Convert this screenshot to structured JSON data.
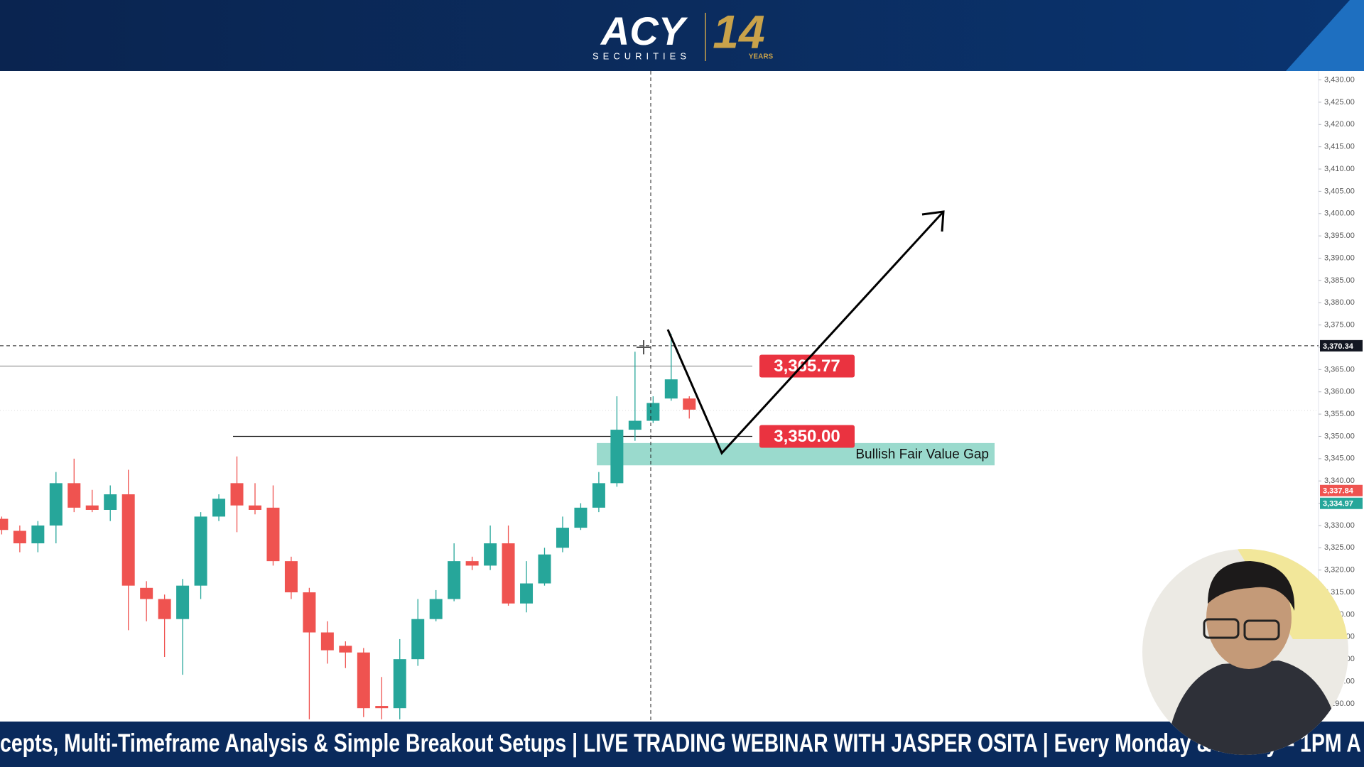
{
  "header": {
    "logo": "ACY",
    "logo_sub": "SECURITIES",
    "anniversary": "14",
    "anniversary_sub": "YEARS"
  },
  "ticker": "cepts, Multi-Timeframe Analysis & Simple Breakout Setups | LIVE TRADING WEBINAR WITH JASPER OSITA | Every Monday & Friday – 1PM A",
  "chart_data": {
    "type": "candlestick",
    "up_color": "#26a69a",
    "down_color": "#ef5350",
    "open": [
      3331.5,
      3328.8,
      3326,
      3330,
      3339.5,
      3334.5,
      3333.5,
      3337,
      3316,
      3313.5,
      3309,
      3316.5,
      3332,
      3339.5,
      3334.5,
      3334,
      3322,
      3315,
      3306,
      3303,
      3301.5,
      3289.5,
      3289,
      3300,
      3309,
      3313.5,
      3322,
      3321,
      3326,
      3312.5,
      3317,
      3325,
      3329.5,
      3334,
      3339.5,
      3351.5,
      3353.5,
      3358.5,
      3358.5
    ],
    "high": [
      3332,
      3330,
      3331,
      3342,
      3345,
      3338,
      3339,
      3342.5,
      3317.5,
      3314.5,
      3318,
      3333,
      3337,
      3345.5,
      3339.5,
      3339,
      3323,
      3316,
      3308.5,
      3304,
      3302.5,
      3296,
      3304.5,
      3313.5,
      3315.5,
      3326,
      3323,
      3330,
      3330,
      3322,
      3325,
      3332,
      3335,
      3342,
      3359,
      3369,
      3359,
      3373,
      3359
    ],
    "low": [
      3328,
      3324,
      3324,
      3326,
      3333,
      3333,
      3331,
      3306.5,
      3308.5,
      3300.5,
      3296.5,
      3313.5,
      3331,
      3328.5,
      3332.5,
      3321,
      3313.5,
      3286.5,
      3299,
      3298,
      3287,
      3286.5,
      3286.5,
      3298.5,
      3308.5,
      3313,
      3320,
      3320,
      3312,
      3310.5,
      3316.5,
      3324,
      3329,
      3333,
      3338.7,
      3349,
      3353,
      3358,
      3354
    ],
    "close": [
      3329,
      3326,
      3330,
      3339.5,
      3334,
      3333.5,
      3337,
      3316.5,
      3313.5,
      3309,
      3316.5,
      3332,
      3336,
      3334.5,
      3333.5,
      3322,
      3315,
      3306,
      3302,
      3301.5,
      3289,
      3289,
      3300,
      3309,
      3313.5,
      3322,
      3321,
      3326,
      3312.5,
      3317,
      3323.5,
      3329.5,
      3334,
      3339.5,
      3351.5,
      3353.5,
      3357.5,
      3362.8,
      3356
    ],
    "ylim": [
      3286,
      3432
    ],
    "yticks": [
      {
        "value": 3290,
        "label": "3,290.00"
      },
      {
        "value": 3295,
        "label": "3,295.00"
      },
      {
        "value": 3300,
        "label": "3,300.00"
      },
      {
        "value": 3305,
        "label": "3,305.00"
      },
      {
        "value": 3310,
        "label": "3,310.00"
      },
      {
        "value": 3315,
        "label": "3,315.00"
      },
      {
        "value": 3320,
        "label": "3,320.00"
      },
      {
        "value": 3325,
        "label": "3,325.00"
      },
      {
        "value": 3330,
        "label": "3,330.00"
      },
      {
        "value": 3335,
        "label": "3,335.00"
      },
      {
        "value": 3340,
        "label": "3,340.00"
      },
      {
        "value": 3345,
        "label": "3,345.00"
      },
      {
        "value": 3350,
        "label": "3,350.00"
      },
      {
        "value": 3355,
        "label": "3,355.00"
      },
      {
        "value": 3360,
        "label": "3,360.00"
      },
      {
        "value": 3365,
        "label": "3,365.00"
      },
      {
        "value": 3370,
        "label": "3,370.00"
      },
      {
        "value": 3375,
        "label": "3,375.00"
      },
      {
        "value": 3380,
        "label": "3,380.00"
      },
      {
        "value": 3385,
        "label": "3,385.00"
      },
      {
        "value": 3390,
        "label": "3,390.00"
      },
      {
        "value": 3395,
        "label": "3,395.00"
      },
      {
        "value": 3400,
        "label": "3,400.00"
      },
      {
        "value": 3405,
        "label": "3,405.00"
      },
      {
        "value": 3410,
        "label": "3,410.00"
      },
      {
        "value": 3415,
        "label": "3,415.00"
      },
      {
        "value": 3420,
        "label": "3,420.00"
      },
      {
        "value": 3425,
        "label": "3,425.00"
      },
      {
        "value": 3430,
        "label": "3,430.00"
      }
    ],
    "price_labels": [
      {
        "value": 3370.34,
        "label": "3,370.34",
        "color": "#131722"
      },
      {
        "value": 3337.84,
        "label": "3,337.84",
        "color": "#ef5350"
      },
      {
        "value": 3334.97,
        "label": "3,334.97",
        "color": "#26a69a"
      }
    ],
    "levels": [
      {
        "value": 3365.77,
        "label": "3,365.77",
        "color": "#ea3340"
      },
      {
        "value": 3350,
        "label": "3,350.00",
        "color": "#ea3340"
      }
    ],
    "zone": {
      "label": "Bullish Fair Value Gap",
      "from": 3343.5,
      "to": 3348.5,
      "color": "#8fd6c8"
    }
  }
}
